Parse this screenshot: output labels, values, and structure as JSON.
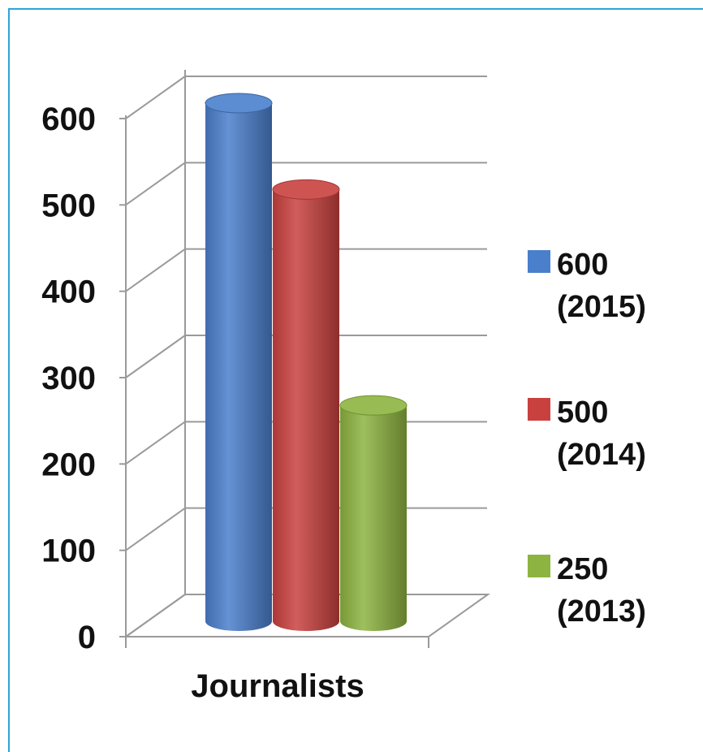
{
  "chart_data": {
    "type": "bar",
    "categories": [
      "Journalists"
    ],
    "series": [
      {
        "name": "600 (2015)",
        "name_lines": [
          "600",
          "(2015)"
        ],
        "values": [
          600
        ],
        "color": "#4a7fcc"
      },
      {
        "name": "500 (2014)",
        "name_lines": [
          "500",
          "(2014)"
        ],
        "values": [
          500
        ],
        "color": "#c9413f"
      },
      {
        "name": "250 (2013)",
        "name_lines": [
          "250",
          "(2013)"
        ],
        "values": [
          250
        ],
        "color": "#8db440"
      }
    ],
    "y_ticks": [
      "0",
      "100",
      "200",
      "300",
      "400",
      "500",
      "600"
    ],
    "ylim": [
      0,
      600
    ],
    "grid": true,
    "legend": "right",
    "style": "3d-cylinder"
  },
  "colors": {
    "frame": "#2aa7d6",
    "grid": "#9a9a9a",
    "text": "#111111"
  }
}
